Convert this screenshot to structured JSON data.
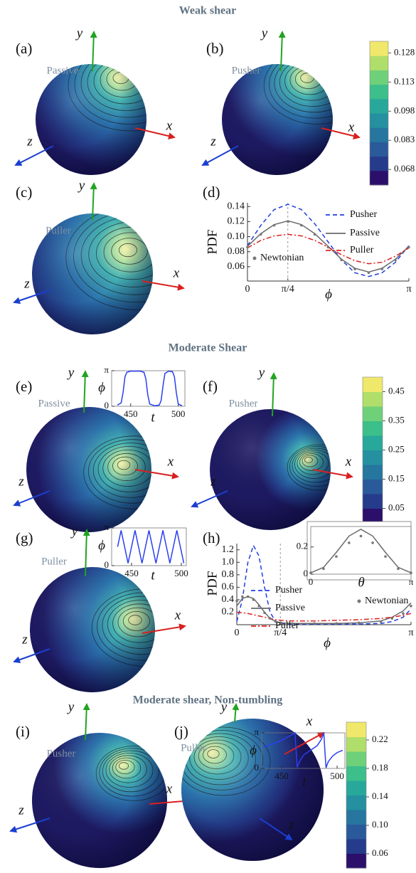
{
  "sections": [
    {
      "title": "Weak shear"
    },
    {
      "title": "Moderate Shear"
    },
    {
      "title": "Moderate shear, Non-tumbling"
    }
  ],
  "axis_names": {
    "x": "x",
    "y": "y",
    "z": "z"
  },
  "panels": [
    {
      "label": "(a)",
      "name": "Passive"
    },
    {
      "label": "(b)",
      "name": "Pusher"
    },
    {
      "label": "(c)",
      "name": "Puller"
    },
    {
      "label": "(d)"
    },
    {
      "label": "(e)",
      "name": "Passive"
    },
    {
      "label": "(f)",
      "name": "Pusher"
    },
    {
      "label": "(g)",
      "name": "Puller"
    },
    {
      "label": "(h)"
    },
    {
      "label": "(i)",
      "name": "Pusher"
    },
    {
      "label": "(j)",
      "name": "Puller"
    }
  ],
  "colorbars": [
    {
      "lim": [
        0.06,
        0.134
      ],
      "ticks": [
        0.068,
        0.083,
        0.098,
        0.113,
        0.128
      ]
    },
    {
      "lim": [
        0,
        0.5
      ],
      "ticks": [
        0.05,
        0.15,
        0.25,
        0.35,
        0.45
      ]
    },
    {
      "lim": [
        0.04,
        0.245
      ],
      "ticks": [
        0.06,
        {
          "value": 0.1,
          "label": "0.10"
        },
        0.14,
        0.18,
        0.22
      ]
    }
  ],
  "chart_data": [
    {
      "type": "line",
      "xlabel": "ϕ",
      "ylabel": "PDF",
      "x": [
        0,
        0.26,
        0.52,
        0.79,
        1.05,
        1.31,
        1.57,
        1.83,
        2.09,
        2.36,
        2.62,
        2.88,
        3.14
      ],
      "xlim": [
        0,
        3.1416
      ],
      "xticks": [
        0,
        {
          "value": 0.7854,
          "label": "π/4"
        },
        {
          "value": 3.1416,
          "label": "π"
        }
      ],
      "ylim": [
        0.041,
        0.145
      ],
      "yticks": [
        0.06,
        0.08,
        {
          "value": 0.1,
          "label": "0.10"
        },
        0.12,
        0.14
      ],
      "series": [
        {
          "name": "Pusher",
          "color": "#1f3fe0",
          "style": "dashed",
          "values": [
            0.088,
            0.115,
            0.136,
            0.143,
            0.136,
            0.117,
            0.093,
            0.069,
            0.052,
            0.047,
            0.052,
            0.066,
            0.088
          ]
        },
        {
          "name": "Passive",
          "color": "#6a6a6a",
          "style": "solid",
          "values": [
            0.087,
            0.104,
            0.116,
            0.121,
            0.116,
            0.104,
            0.087,
            0.07,
            0.058,
            0.053,
            0.058,
            0.07,
            0.087
          ]
        },
        {
          "name": "Puller",
          "color": "#e02020",
          "style": "dashdot",
          "values": [
            0.085,
            0.095,
            0.101,
            0.103,
            0.101,
            0.095,
            0.086,
            0.076,
            0.068,
            0.064,
            0.066,
            0.074,
            0.085
          ]
        },
        {
          "name": "Newtonian",
          "color": "#777777",
          "style": "dots",
          "values": [
            0.086,
            0.103,
            0.115,
            0.12,
            0.115,
            0.103,
            0.086,
            0.069,
            0.057,
            0.052,
            0.057,
            0.069,
            0.086
          ]
        }
      ]
    },
    {
      "type": "line",
      "xlabel": "t",
      "ylabel": "ϕ",
      "x": [
        436,
        440,
        442,
        444,
        446,
        450,
        455,
        460,
        464,
        466,
        468,
        470,
        475,
        480,
        482,
        484,
        486,
        490,
        494,
        496,
        498,
        500,
        504
      ],
      "xlim": [
        430,
        507
      ],
      "xticks": [
        450,
        500
      ],
      "ylim": [
        0,
        3.1416
      ],
      "yticks": [
        0,
        {
          "value": 3.1416,
          "label": "π"
        }
      ],
      "series": [
        {
          "color": "#2a3ff0",
          "style": "solid",
          "values": [
            0.1,
            0.3,
            1.2,
            2.6,
            3.0,
            3.1,
            3.1,
            3.1,
            3.0,
            2.4,
            1.0,
            0.2,
            0.05,
            0.1,
            0.5,
            1.8,
            2.9,
            3.1,
            3.05,
            2.6,
            1.2,
            0.2,
            0.05
          ]
        }
      ]
    },
    {
      "type": "line",
      "xlabel": "t",
      "ylabel": "ϕ",
      "x": [
        436,
        439.5,
        443,
        446.5,
        450,
        453.5,
        457,
        460.5,
        464,
        467.5,
        471,
        474.5,
        478,
        481.5,
        485,
        488.5,
        492,
        495.5,
        499,
        502.5
      ],
      "xlim": [
        430,
        505
      ],
      "xticks": [
        450,
        500
      ],
      "ylim": [
        0,
        3.1416
      ],
      "yticks": [
        0,
        {
          "value": 3.1416,
          "label": "π"
        }
      ],
      "series": [
        {
          "color": "#2a3ff0",
          "style": "solid",
          "values": [
            1.57,
            2.94,
            1.57,
            0.2,
            1.57,
            2.94,
            1.57,
            0.2,
            1.57,
            2.94,
            1.57,
            0.2,
            1.57,
            2.94,
            1.57,
            0.2,
            1.57,
            2.94,
            1.57,
            0.2
          ]
        }
      ]
    },
    {
      "type": "line",
      "xlabel": "ϕ",
      "ylabel": "PDF",
      "x": [
        0,
        0.1,
        0.2,
        0.3,
        0.4,
        0.5,
        0.6,
        0.7,
        0.8,
        1.0,
        1.4,
        1.8,
        2.2,
        2.6,
        2.8,
        3.0,
        3.14
      ],
      "xlim": [
        0,
        3.1416
      ],
      "xticks": [
        0,
        {
          "value": 0.7854,
          "label": "π/4"
        },
        {
          "value": 3.1416,
          "label": "π"
        }
      ],
      "ylim": [
        0,
        1.3
      ],
      "yticks": [
        0.2,
        0.4,
        0.6,
        0.8,
        {
          "value": 1,
          "label": "1.0"
        },
        1.2
      ],
      "series": [
        {
          "name": "Pusher",
          "color": "#1f3fe0",
          "style": "dashed",
          "values": [
            0.05,
            0.4,
            1.0,
            1.27,
            1.1,
            0.6,
            0.2,
            0.05,
            0.02,
            0.01,
            0.01,
            0.01,
            0.01,
            0.02,
            0.05,
            0.12,
            0.25
          ]
        },
        {
          "name": "Passive",
          "color": "#6a6a6a",
          "style": "solid",
          "values": [
            0.3,
            0.42,
            0.45,
            0.42,
            0.32,
            0.2,
            0.1,
            0.05,
            0.03,
            0.02,
            0.02,
            0.02,
            0.03,
            0.06,
            0.12,
            0.22,
            0.35
          ]
        },
        {
          "name": "Puller",
          "color": "#e02020",
          "style": "dashdot",
          "values": [
            0.2,
            0.19,
            0.18,
            0.16,
            0.14,
            0.12,
            0.1,
            0.08,
            0.07,
            0.06,
            0.06,
            0.07,
            0.08,
            0.1,
            0.12,
            0.15,
            0.18
          ]
        },
        {
          "name": "Newtonian",
          "color": "#777777",
          "style": "dots",
          "values": [
            0.38,
            0.45,
            0.45,
            0.4,
            0.3,
            0.19,
            0.1,
            0.05,
            0.03,
            0.02,
            0.02,
            0.02,
            0.03,
            0.05,
            0.1,
            0.18,
            0.3
          ]
        }
      ]
    },
    {
      "type": "line",
      "xlabel": "θ",
      "x": [
        0,
        0.4,
        0.8,
        1.2,
        1.57,
        1.94,
        2.34,
        2.74,
        3.14
      ],
      "xlim": [
        0,
        3.1416
      ],
      "xticks": [
        0,
        {
          "value": 3.1416,
          "label": "π"
        }
      ],
      "ylim": [
        0,
        0.35
      ],
      "yticks": [
        0,
        0.2
      ],
      "series": [
        {
          "color": "#6a6a6a",
          "style": "solid",
          "values": [
            0.01,
            0.05,
            0.16,
            0.28,
            0.33,
            0.28,
            0.16,
            0.05,
            0.01
          ]
        },
        {
          "color": "#777777",
          "style": "dots",
          "values": [
            0.01,
            0.04,
            0.13,
            0.23,
            0.28,
            0.23,
            0.13,
            0.04,
            0.01
          ]
        }
      ]
    },
    {
      "type": "line",
      "xlabel": "t",
      "ylabel": "ϕ",
      "x": [
        434,
        440,
        446,
        452,
        456,
        460,
        462,
        463,
        464,
        466,
        470,
        476,
        482,
        486,
        488,
        489,
        490,
        492,
        496,
        500,
        505
      ],
      "xlim": [
        432,
        507
      ],
      "xticks": [
        450,
        500
      ],
      "ylim": [
        0,
        3.1416
      ],
      "yticks": [
        0,
        {
          "value": 3.1416,
          "label": "π"
        }
      ],
      "series": [
        {
          "color": "#2a3ff0",
          "style": "solid",
          "values": [
            1.9,
            2.1,
            2.3,
            2.6,
            2.8,
            3.0,
            3.14,
            1.6,
            0.1,
            0.6,
            1.2,
            1.6,
            2.0,
            2.6,
            3.14,
            1.5,
            0.05,
            0.6,
            1.1,
            1.4,
            1.6
          ]
        }
      ]
    }
  ]
}
